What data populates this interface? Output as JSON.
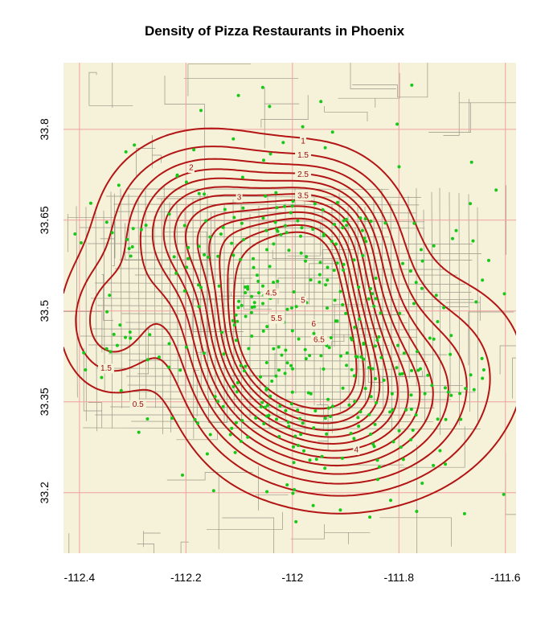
{
  "chart_data": {
    "type": "contour",
    "title": "Density of Pizza Restaurants in Phoenix",
    "xlabel": "",
    "ylabel": "",
    "xlim": [
      -112.43,
      -111.58
    ],
    "ylim": [
      33.1,
      33.91
    ],
    "x_ticks": [
      -112.4,
      -112.2,
      -112.0,
      -111.8,
      -111.6
    ],
    "x_tick_labels": [
      "-112.4",
      "-112.2",
      "-112",
      "-111.8",
      "-111.6"
    ],
    "y_ticks": [
      33.2,
      33.35,
      33.5,
      33.65,
      33.8
    ],
    "y_tick_labels": [
      "33.2",
      "33.35",
      "33.5",
      "33.65",
      "33.8"
    ],
    "grid": true,
    "contour_levels": [
      0.5,
      1,
      1.5,
      2,
      2.5,
      3,
      3.5,
      4,
      4.5,
      5,
      5.5,
      6,
      6.5
    ],
    "contour_labels": [
      {
        "text": "1",
        "x": -111.98,
        "y": 33.78
      },
      {
        "text": "1.5",
        "x": -111.98,
        "y": 33.757
      },
      {
        "text": "2",
        "x": -112.19,
        "y": 33.736
      },
      {
        "text": "2.5",
        "x": -111.98,
        "y": 33.725
      },
      {
        "text": "3",
        "x": -112.1,
        "y": 33.687
      },
      {
        "text": "3.5",
        "x": -111.98,
        "y": 33.69
      },
      {
        "text": "4.5",
        "x": -112.04,
        "y": 33.529
      },
      {
        "text": "5",
        "x": -111.98,
        "y": 33.517
      },
      {
        "text": "5.5",
        "x": -112.03,
        "y": 33.487
      },
      {
        "text": "6",
        "x": -111.96,
        "y": 33.478
      },
      {
        "text": "6.5",
        "x": -111.95,
        "y": 33.452
      },
      {
        "text": "1.5",
        "x": -112.35,
        "y": 33.405
      },
      {
        "text": "0.5",
        "x": -112.29,
        "y": 33.345
      },
      {
        "text": "4",
        "x": -111.88,
        "y": 33.27
      }
    ],
    "peaks": [
      {
        "x": -112.05,
        "y": 33.475,
        "height": 6.9,
        "rx": 0.09,
        "ry": 0.11
      },
      {
        "x": -111.93,
        "y": 33.47,
        "height": 4.2,
        "rx": 0.08,
        "ry": 0.11
      },
      {
        "x": -112.17,
        "y": 33.64,
        "height": 3.5,
        "rx": 0.1,
        "ry": 0.08
      },
      {
        "x": -111.95,
        "y": 33.63,
        "height": 3.0,
        "rx": 0.08,
        "ry": 0.07
      },
      {
        "x": -111.88,
        "y": 33.33,
        "height": 3.0,
        "rx": 0.12,
        "ry": 0.08
      },
      {
        "x": -112.34,
        "y": 33.48,
        "height": 1.8,
        "rx": 0.06,
        "ry": 0.07
      },
      {
        "x": -111.75,
        "y": 33.42,
        "height": 1.2,
        "rx": 0.13,
        "ry": 0.1
      }
    ],
    "colors": {
      "map_background": "#f5f2d9",
      "street_lines": "#8a8678",
      "grid_lines": "#f0a0a0",
      "contour_lines": "#b31515",
      "points": "#18c818"
    }
  }
}
